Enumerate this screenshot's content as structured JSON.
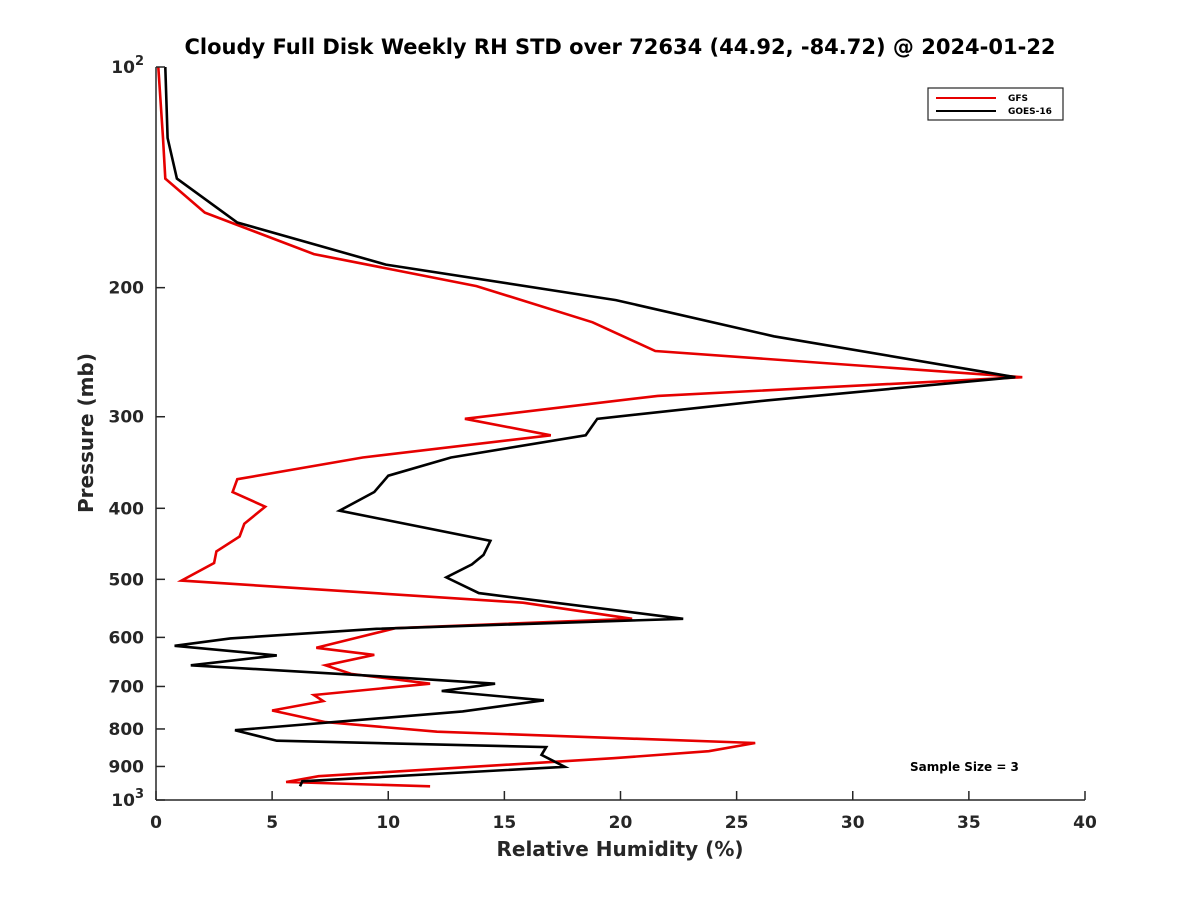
{
  "chart_data": {
    "type": "line",
    "title": "Cloudy Full Disk Weekly RH STD over 72634 (44.92, -84.72) @ 2024-01-22",
    "xlabel": "Relative Humidity (%)",
    "ylabel": "Pressure (mb)",
    "xlim": [
      0,
      40
    ],
    "ylim": [
      100,
      1000
    ],
    "y_scale": "log",
    "y_reversed": true,
    "xticks": [
      "0",
      "5",
      "10",
      "15",
      "20",
      "25",
      "30",
      "35",
      "40"
    ],
    "yticks": [
      {
        "value": 100,
        "base": "10",
        "exp": "2"
      },
      {
        "value": 200,
        "label": "200"
      },
      {
        "value": 300,
        "label": "300"
      },
      {
        "value": 400,
        "label": "400"
      },
      {
        "value": 500,
        "label": "500"
      },
      {
        "value": 600,
        "label": "600"
      },
      {
        "value": 700,
        "label": "700"
      },
      {
        "value": 800,
        "label": "800"
      },
      {
        "value": 900,
        "label": "900"
      },
      {
        "value": 1000,
        "base": "10",
        "exp": "3"
      }
    ],
    "grid": false,
    "legend_position": "top-right",
    "annotation": "Sample Size = 3",
    "series": [
      {
        "name": "GFS",
        "color": "#e60000",
        "points": [
          [
            0.1,
            100
          ],
          [
            0.3,
            125
          ],
          [
            0.4,
            142
          ],
          [
            2.1,
            158
          ],
          [
            6.8,
            180
          ],
          [
            13.8,
            199
          ],
          [
            18.8,
            223
          ],
          [
            21.5,
            244
          ],
          [
            37.3,
            265
          ],
          [
            21.6,
            281
          ],
          [
            13.3,
            302
          ],
          [
            17.0,
            318
          ],
          [
            8.9,
            341
          ],
          [
            3.5,
            365
          ],
          [
            3.3,
            380
          ],
          [
            4.7,
            398
          ],
          [
            3.8,
            420
          ],
          [
            3.6,
            437
          ],
          [
            2.6,
            458
          ],
          [
            2.5,
            475
          ],
          [
            1.1,
            502
          ],
          [
            15.8,
            538
          ],
          [
            20.5,
            566
          ],
          [
            10.3,
            583
          ],
          [
            6.9,
            620
          ],
          [
            9.4,
            634
          ],
          [
            7.3,
            655
          ],
          [
            8.4,
            673
          ],
          [
            11.8,
            694
          ],
          [
            6.8,
            719
          ],
          [
            7.2,
            733
          ],
          [
            5.0,
            755
          ],
          [
            7.3,
            783
          ],
          [
            12.1,
            807
          ],
          [
            25.8,
            836
          ],
          [
            23.8,
            858
          ],
          [
            19.7,
            877
          ],
          [
            7.0,
            928
          ],
          [
            5.6,
            945
          ],
          [
            11.8,
            958
          ]
        ]
      },
      {
        "name": "GOES-16",
        "color": "#000000",
        "points": [
          [
            0.4,
            100
          ],
          [
            0.5,
            125
          ],
          [
            0.9,
            142
          ],
          [
            3.5,
            163
          ],
          [
            9.9,
            186
          ],
          [
            19.8,
            208
          ],
          [
            26.6,
            233
          ],
          [
            37.0,
            265
          ],
          [
            26.3,
            285
          ],
          [
            19.0,
            302
          ],
          [
            18.5,
            318
          ],
          [
            12.7,
            341
          ],
          [
            10.0,
            361
          ],
          [
            9.4,
            380
          ],
          [
            7.9,
            403
          ],
          [
            14.4,
            443
          ],
          [
            14.1,
            463
          ],
          [
            13.6,
            477
          ],
          [
            12.5,
            497
          ],
          [
            13.9,
            522
          ],
          [
            22.7,
            566
          ],
          [
            9.5,
            584
          ],
          [
            3.2,
            602
          ],
          [
            0.8,
            616
          ],
          [
            5.2,
            635
          ],
          [
            1.5,
            655
          ],
          [
            9.0,
            676
          ],
          [
            14.6,
            694
          ],
          [
            12.3,
            710
          ],
          [
            16.7,
            731
          ],
          [
            13.2,
            757
          ],
          [
            3.4,
            803
          ],
          [
            5.2,
            830
          ],
          [
            16.8,
            847
          ],
          [
            16.6,
            868
          ],
          [
            17.6,
            901
          ],
          [
            6.3,
            943
          ],
          [
            6.2,
            958
          ]
        ]
      }
    ]
  }
}
